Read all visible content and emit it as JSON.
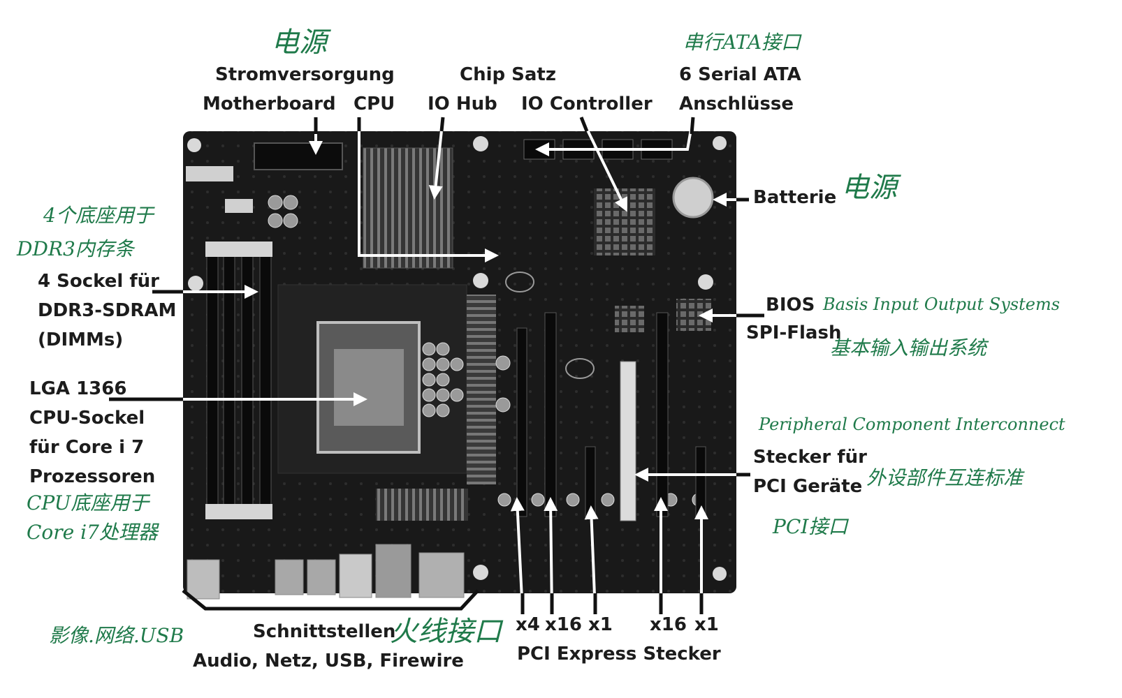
{
  "labels": {
    "power_line1": "Stromversorgung",
    "power_line2": "Motherboard",
    "cpu": "CPU",
    "chipset_title": "Chip Satz",
    "io_hub": "IO Hub",
    "io_controller": "IO Controller",
    "sata_line1": "6 Serial ATA",
    "sata_line2": "Anschlüsse",
    "batterie": "Batterie",
    "bios_line1": "BIOS",
    "bios_line2": "SPI-Flash",
    "dimm_line1": "4 Sockel für",
    "dimm_line2": "DDR3-SDRAM",
    "dimm_line3": "(DIMMs)",
    "lga_line1": "LGA 1366",
    "lga_line2": "CPU-Sockel",
    "lga_line3": "für Core i 7",
    "lga_line4": "Prozessoren",
    "pci_line1": "Stecker für",
    "pci_line2": "PCI Geräte",
    "io_line1": "Schnittstellen",
    "io_line2": "Audio, Netz, USB, Firewire",
    "pcie_x4": "x4",
    "pcie_x16_a": "x16",
    "pcie_x1_a": "x1",
    "pcie_x16_b": "x16",
    "pcie_x1_b": "x1",
    "pcie_title": "PCI Express Stecker"
  },
  "notes": {
    "power_top": "电源",
    "sata": "串行ATA接口",
    "power_right": "电源",
    "dimm_line1": "4个底座用于",
    "dimm_line2": "DDR3内存条",
    "bios_line1": "Basis Input Output Systems",
    "bios_line2": "基本输入输出系统",
    "pci_line1": "Peripheral Component Interconnect",
    "pci_line2": "外设部件互连标准",
    "pci_line3": "PCI接口",
    "cpu_line1": "CPU底座用于",
    "cpu_line2": "Core i7处理器",
    "io_left": "影像.网络.USB",
    "firewire": "火线接口"
  },
  "colors": {
    "board": "#161616",
    "annotation_ink": "#1f7a4a",
    "label_ink": "#1c1c1c",
    "arrow": "#ffffff"
  }
}
